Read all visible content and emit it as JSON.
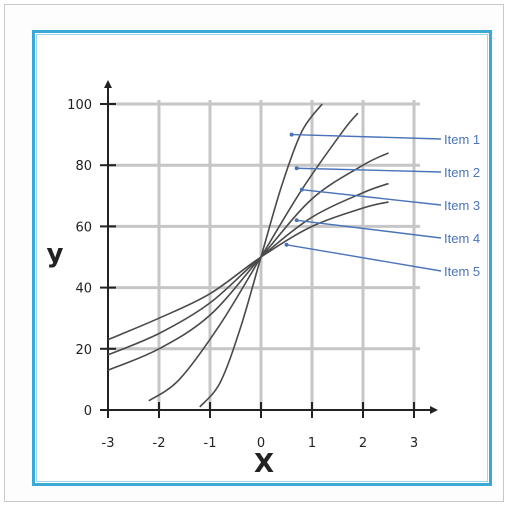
{
  "chart_data": {
    "type": "line",
    "title": "",
    "xlabel": "X",
    "ylabel": "y",
    "xlim": [
      -3,
      3
    ],
    "ylim": [
      0,
      100
    ],
    "x_ticks": [
      "-3",
      "-2",
      "-1",
      "0",
      "1",
      "2",
      "3"
    ],
    "y_ticks": [
      "0",
      "20",
      "40",
      "60",
      "80",
      "100"
    ],
    "grid": true,
    "legend_position": "right",
    "series": [
      {
        "name": "Item 1",
        "x": [
          -1.2,
          -0.8,
          -0.4,
          0,
          0.4,
          0.8,
          1.2
        ],
        "y": [
          1,
          9,
          27,
          50,
          73,
          91,
          100
        ]
      },
      {
        "name": "Item 2",
        "x": [
          -2.2,
          -1.6,
          -0.8,
          0,
          0.8,
          1.6,
          1.9
        ],
        "y": [
          3,
          10,
          28,
          50,
          72,
          91,
          97
        ]
      },
      {
        "name": "Item 3",
        "x": [
          -3,
          -2,
          -1,
          0,
          1,
          2,
          2.5
        ],
        "y": [
          13,
          20,
          31,
          50,
          69,
          80,
          84
        ]
      },
      {
        "name": "Item 4",
        "x": [
          -3,
          -2,
          -1,
          0,
          1,
          2,
          2.5
        ],
        "y": [
          18,
          25,
          35,
          50,
          63,
          71,
          74
        ]
      },
      {
        "name": "Item 5",
        "x": [
          -3,
          -2,
          -1,
          0,
          1,
          2,
          2.5
        ],
        "y": [
          23,
          30,
          38,
          50,
          60,
          66,
          68
        ]
      }
    ],
    "pointers": [
      {
        "x": 0.6,
        "y": 90
      },
      {
        "x": 0.7,
        "y": 79
      },
      {
        "x": 0.8,
        "y": 72
      },
      {
        "x": 0.7,
        "y": 62
      },
      {
        "x": 0.5,
        "y": 54
      }
    ],
    "colors": {
      "curve": "#4a4a4a",
      "grid": "#c6c6c6",
      "axis": "#222222",
      "legend": "#4a74b8",
      "frame": "#3aa9d8"
    }
  }
}
